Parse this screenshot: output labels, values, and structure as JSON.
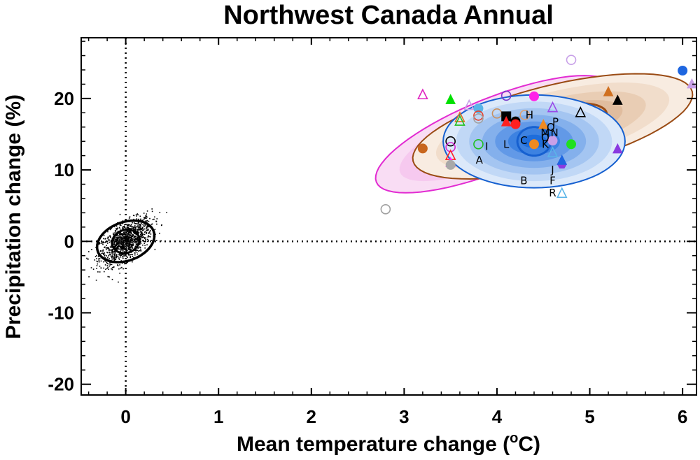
{
  "chart_data": {
    "type": "scatter",
    "title": "Northwest Canada Annual",
    "xlabel_main": "Mean temperature change (",
    "xlabel_sup": "o",
    "xlabel_end": "C)",
    "ylabel": "Precipitation change (%)",
    "xlim": [
      -0.48,
      6.15
    ],
    "ylim": [
      -21.5,
      28.5
    ],
    "x_ticks": [
      0,
      1,
      2,
      3,
      4,
      5,
      6
    ],
    "x_tick_labels": [
      "0",
      "1",
      "2",
      "3",
      "4",
      "5",
      "6"
    ],
    "y_ticks": [
      -20,
      -10,
      0,
      10,
      20
    ],
    "y_tick_labels": [
      "-20",
      "-10",
      "0",
      "10",
      "20"
    ],
    "grid": false,
    "reference_lines": {
      "x": 0,
      "y": 0,
      "style": "dotted"
    },
    "natural_variability": {
      "center": [
        0,
        0
      ],
      "ellipse_inner": {
        "rx": 0.15,
        "ry": 1.6,
        "angle_deg": 20
      },
      "ellipse_outer": {
        "rx": 0.32,
        "ry": 2.7,
        "angle_deg": 20
      },
      "spread_x": 0.14,
      "spread_y": 1.6,
      "n_points": 1200,
      "color": "#000000"
    },
    "distributions": [
      {
        "name": "magenta",
        "center": [
          3.98,
          15.0
        ],
        "rx": 1.38,
        "ry": 5.1,
        "angle_deg": 22,
        "shades": [
          "#f9ddf4",
          "#f6c9ef",
          "#f2b2e9",
          "#ee9ce4",
          "#ea86df"
        ],
        "outline": "#e22bd2"
      },
      {
        "name": "brown",
        "center": [
          4.6,
          16.1
        ],
        "rx": 1.55,
        "ry": 5.7,
        "angle_deg": 14,
        "shades": [
          "#f8ece1",
          "#f1ddcb",
          "#e9cdb4",
          "#e0bc9e",
          "#d6ab8a",
          "#cb9975"
        ],
        "outline": "#9a4b14",
        "inner_outline": {
          "rx": 0.6,
          "ry": 2.7
        }
      },
      {
        "name": "blue",
        "center": [
          4.4,
          14.0
        ],
        "rx": 0.98,
        "ry": 6.5,
        "angle_deg": 0,
        "shades": [
          "#dce9fa",
          "#c1d8f6",
          "#a4c5f1",
          "#84b0ec",
          "#6299e7",
          "#3d82e1",
          "#1e6ddb"
        ],
        "outline": "#1660d0",
        "inner_outline": {
          "rx": 0.18,
          "ry": 2.0
        }
      }
    ],
    "points": [
      {
        "x": 3.2,
        "y": 13.0,
        "shape": "circle",
        "fill": true,
        "color": "#c8661e"
      },
      {
        "x": 3.2,
        "y": 20.5,
        "shape": "triangle",
        "fill": false,
        "color": "#e022c0"
      },
      {
        "x": 3.5,
        "y": 19.8,
        "shape": "triangle",
        "fill": true,
        "color": "#00e000"
      },
      {
        "x": 3.5,
        "y": 14.0,
        "shape": "circle",
        "fill": false,
        "color": "#000000"
      },
      {
        "x": 3.5,
        "y": 13.2,
        "shape": "circle",
        "fill": false,
        "color": "#d22bd2"
      },
      {
        "x": 3.5,
        "y": 12.0,
        "shape": "triangle",
        "fill": false,
        "color": "#ff2020"
      },
      {
        "x": 3.5,
        "y": 11.0,
        "shape": "triangle",
        "fill": true,
        "color": "#ff22ff"
      },
      {
        "x": 3.5,
        "y": 10.7,
        "shape": "circle",
        "fill": true,
        "color": "#a8a8a8"
      },
      {
        "x": 3.6,
        "y": 17.3,
        "shape": "triangle",
        "fill": false,
        "color": "#e07020"
      },
      {
        "x": 3.6,
        "y": 16.8,
        "shape": "triangle",
        "fill": false,
        "color": "#20c020"
      },
      {
        "x": 3.7,
        "y": 19.0,
        "shape": "triangle",
        "fill": false,
        "color": "#c8a0e8"
      },
      {
        "x": 3.8,
        "y": 18.6,
        "shape": "circle",
        "fill": true,
        "color": "#5ab4e8"
      },
      {
        "x": 3.8,
        "y": 17.6,
        "shape": "circle",
        "fill": false,
        "color": "#e8402a"
      },
      {
        "x": 3.8,
        "y": 17.2,
        "shape": "circle",
        "fill": false,
        "color": "#a0a0a0"
      },
      {
        "x": 3.8,
        "y": 13.6,
        "shape": "circle",
        "fill": false,
        "color": "#20c020"
      },
      {
        "x": 4.0,
        "y": 17.9,
        "shape": "circle",
        "fill": false,
        "color": "#c89060"
      },
      {
        "x": 4.1,
        "y": 20.4,
        "shape": "circle",
        "fill": false,
        "color": "#7a38c8"
      },
      {
        "x": 4.1,
        "y": 17.5,
        "shape": "square",
        "fill": true,
        "color": "#000000"
      },
      {
        "x": 4.1,
        "y": 16.7,
        "shape": "triangle",
        "fill": true,
        "color": "#ff2020"
      },
      {
        "x": 4.2,
        "y": 16.8,
        "shape": "circle",
        "fill": true,
        "color": "#000000"
      },
      {
        "x": 4.2,
        "y": 16.4,
        "shape": "circle",
        "fill": true,
        "color": "#ff2020"
      },
      {
        "x": 4.3,
        "y": 17.7,
        "shape": "circle",
        "fill": false,
        "color": "#e0a070"
      },
      {
        "x": 4.4,
        "y": 20.3,
        "shape": "circle",
        "fill": true,
        "color": "#ff22e8"
      },
      {
        "x": 4.4,
        "y": 13.6,
        "shape": "circle",
        "fill": true,
        "color": "#f08a20"
      },
      {
        "x": 4.5,
        "y": 16.3,
        "shape": "triangle",
        "fill": true,
        "color": "#f08a20"
      },
      {
        "x": 4.6,
        "y": 18.7,
        "shape": "triangle",
        "fill": false,
        "color": "#9a4ae8"
      },
      {
        "x": 4.6,
        "y": 14.1,
        "shape": "circle",
        "fill": true,
        "color": "#c8a0e8"
      },
      {
        "x": 4.6,
        "y": 12.4,
        "shape": "triangle",
        "fill": false,
        "color": "#5ab4e8"
      },
      {
        "x": 4.7,
        "y": 10.8,
        "shape": "hexagon",
        "fill": true,
        "color": "#8a3ae0"
      },
      {
        "x": 4.7,
        "y": 6.7,
        "shape": "triangle",
        "fill": false,
        "color": "#5ab4e8"
      },
      {
        "x": 4.7,
        "y": 11.3,
        "shape": "triangle",
        "fill": true,
        "color": "#1e66e0"
      },
      {
        "x": 4.8,
        "y": 25.4,
        "shape": "circle",
        "fill": false,
        "color": "#c8a0e8"
      },
      {
        "x": 4.8,
        "y": 13.6,
        "shape": "circle",
        "fill": true,
        "color": "#20e020"
      },
      {
        "x": 4.9,
        "y": 18.0,
        "shape": "triangle",
        "fill": false,
        "color": "#000000"
      },
      {
        "x": 5.2,
        "y": 20.9,
        "shape": "triangle",
        "fill": true,
        "color": "#d07020"
      },
      {
        "x": 5.3,
        "y": 19.7,
        "shape": "triangle",
        "fill": true,
        "color": "#000000"
      },
      {
        "x": 5.3,
        "y": 12.9,
        "shape": "triangle",
        "fill": true,
        "color": "#8a3ae0"
      },
      {
        "x": 6.0,
        "y": 23.9,
        "shape": "circle",
        "fill": true,
        "color": "#1e66e0"
      },
      {
        "x": 6.1,
        "y": 22.0,
        "shape": "triangle",
        "fill": true,
        "color": "#c8a0e8"
      },
      {
        "x": 2.8,
        "y": 4.5,
        "shape": "circle",
        "fill": false,
        "color": "#a0a0a0"
      }
    ],
    "letter_labels": [
      {
        "text": "H",
        "x": 4.35,
        "y": 17.7
      },
      {
        "text": "P",
        "x": 4.63,
        "y": 16.7
      },
      {
        "text": "Q",
        "x": 4.58,
        "y": 16.0
      },
      {
        "text": "M",
        "x": 4.52,
        "y": 15.2
      },
      {
        "text": "N",
        "x": 4.62,
        "y": 15.2
      },
      {
        "text": "C",
        "x": 4.29,
        "y": 14.1
      },
      {
        "text": "K",
        "x": 4.52,
        "y": 13.6
      },
      {
        "text": "O",
        "x": 4.52,
        "y": 14.5
      },
      {
        "text": "L",
        "x": 4.1,
        "y": 13.6
      },
      {
        "text": "I",
        "x": 3.89,
        "y": 13.3
      },
      {
        "text": "A",
        "x": 3.81,
        "y": 11.4
      },
      {
        "text": "J",
        "x": 4.6,
        "y": 10.0
      },
      {
        "text": "B",
        "x": 4.29,
        "y": 8.5
      },
      {
        "text": "F",
        "x": 4.6,
        "y": 8.5
      },
      {
        "text": "R",
        "x": 4.6,
        "y": 6.8
      }
    ]
  }
}
